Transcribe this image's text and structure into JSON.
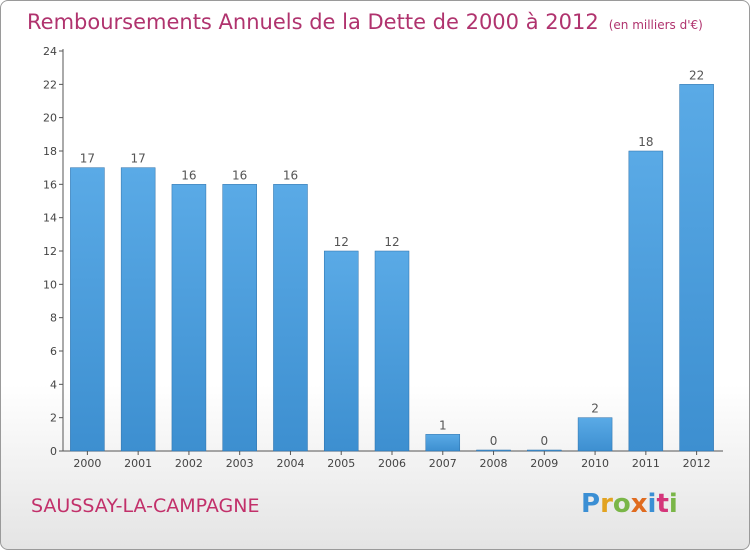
{
  "title": "Remboursements Annuels de la Dette de 2000 à 2012",
  "unit": "(en milliers d'€)",
  "commune": "SAUSSAY-LA-CAMPAGNE",
  "logo": {
    "text": "Proxiti",
    "letter_colors": [
      "#3b8fd4",
      "#e2a321",
      "#7ab648",
      "#e06b1f",
      "#3b8fd4",
      "#d4357a",
      "#7ab648"
    ]
  },
  "colors": {
    "title": "#b0336e",
    "bar": "#3d8fd0",
    "bar_light": "#5aaae6"
  },
  "chart_data": {
    "type": "bar",
    "title": "Remboursements Annuels de la Dette de 2000 à 2012",
    "categories": [
      "2000",
      "2001",
      "2002",
      "2003",
      "2004",
      "2005",
      "2006",
      "2007",
      "2008",
      "2009",
      "2010",
      "2011",
      "2012"
    ],
    "values": [
      17,
      17,
      16,
      16,
      16,
      12,
      12,
      1,
      0,
      0,
      2,
      18,
      22
    ],
    "ylim": [
      0,
      24
    ],
    "yticks": [
      0,
      2,
      4,
      6,
      8,
      10,
      12,
      14,
      16,
      18,
      20,
      22,
      24
    ],
    "grid": false,
    "xlabel": "",
    "ylabel": ""
  }
}
